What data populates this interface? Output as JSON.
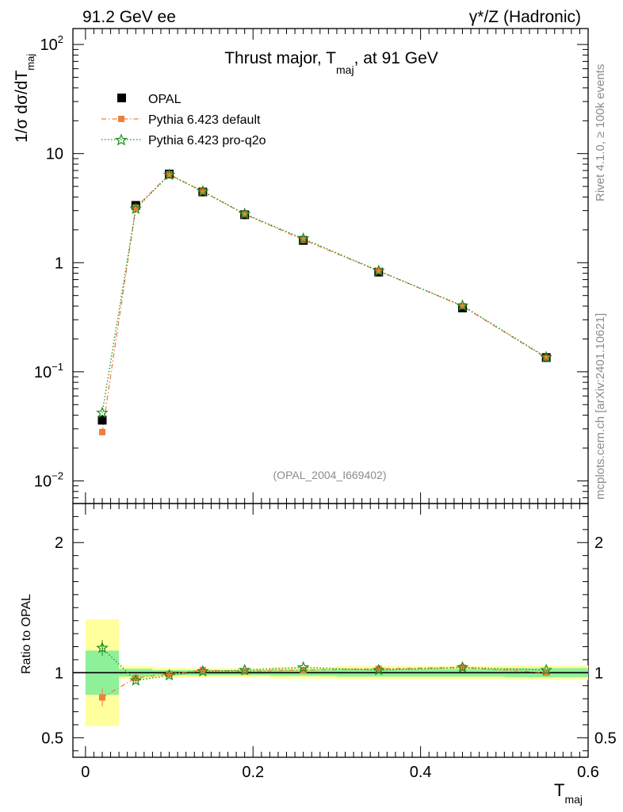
{
  "chart_data": {
    "type": "line",
    "header_left": "91.2 GeV ee",
    "header_right": "γ*/Z (Hadronic)",
    "title_parts": [
      "Thrust major, T",
      "maj",
      ", at 91 GeV"
    ],
    "ylabel_parts": [
      "1/σ  dσ/dT",
      "maj"
    ],
    "xlabel_parts": [
      "T",
      "maj"
    ],
    "ratio_ylabel": "Ratio to OPAL",
    "analysis_tag": "(OPAL_2004_I669402)",
    "side_text_top": "Rivet 4.1.0, ≥ 100k events",
    "side_text_bottom": "mcplots.cern.ch [arXiv:2401.10621]",
    "x_range": [
      -0.015,
      0.6
    ],
    "x_ticks": [
      0,
      0.2,
      0.4,
      0.6
    ],
    "x_tick_labels": [
      "0",
      "0.2",
      "0.4",
      "0.6"
    ],
    "y_scale": "log",
    "y_range": [
      0.0062,
      140
    ],
    "y_tick_labels": [
      {
        "value": 100,
        "base": "10",
        "exp": "2"
      },
      {
        "value": 10,
        "base": "10",
        "exp": ""
      },
      {
        "value": 1,
        "base": "1",
        "exp": ""
      },
      {
        "value": 0.1,
        "base": "10",
        "exp": "−1"
      },
      {
        "value": 0.01,
        "base": "10",
        "exp": "−2"
      }
    ],
    "ratio_range": [
      0.35,
      2.3
    ],
    "ratio_ticks": [
      {
        "value": 2,
        "label": "2"
      },
      {
        "value": 1,
        "label": "1"
      },
      {
        "value": 0.5,
        "label": "0.5"
      }
    ],
    "x": [
      0.02,
      0.06,
      0.1,
      0.14,
      0.19,
      0.26,
      0.35,
      0.45,
      0.55
    ],
    "bin_edges": [
      0.0,
      0.04,
      0.08,
      0.12,
      0.16,
      0.22,
      0.3,
      0.4,
      0.5,
      0.6
    ],
    "legend": {
      "position": "top-left",
      "entries": [
        "OPAL",
        "Pythia 6.423 default",
        "Pythia 6.423 pro-q2o"
      ]
    },
    "series": [
      {
        "name": "OPAL",
        "color": "#000000",
        "marker": "square",
        "values": [
          0.036,
          3.35,
          6.5,
          4.45,
          2.75,
          1.6,
          0.82,
          0.385,
          0.135
        ],
        "band_green": [
          0.17,
          0.03,
          0.02,
          0.02,
          0.02,
          0.025,
          0.03,
          0.03,
          0.035
        ],
        "band_yellow": [
          0.41,
          0.05,
          0.04,
          0.035,
          0.035,
          0.045,
          0.05,
          0.05,
          0.055
        ]
      },
      {
        "name": "Pythia 6.423 default",
        "color": "#f07f3a",
        "marker": "square",
        "values": [
          0.028,
          3.2,
          6.45,
          4.5,
          2.78,
          1.62,
          0.84,
          0.4,
          0.134
        ],
        "ratio": [
          0.81,
          0.96,
          0.99,
          1.02,
          1.01,
          1.02,
          1.03,
          1.04,
          1.0
        ],
        "ratio_err": [
          0.07,
          0.01,
          0.005,
          0.005,
          0.005,
          0.005,
          0.005,
          0.005,
          0.005
        ]
      },
      {
        "name": "Pythia 6.423 pro-q2o",
        "color": "#1a8c1a",
        "marker": "star",
        "values": [
          0.042,
          3.12,
          6.38,
          4.5,
          2.8,
          1.66,
          0.84,
          0.403,
          0.136
        ],
        "ratio": [
          1.19,
          0.94,
          0.98,
          1.01,
          1.02,
          1.04,
          1.02,
          1.04,
          1.02
        ],
        "ratio_err": [
          0.06,
          0.01,
          0.005,
          0.005,
          0.005,
          0.005,
          0.005,
          0.005,
          0.005
        ]
      }
    ]
  }
}
